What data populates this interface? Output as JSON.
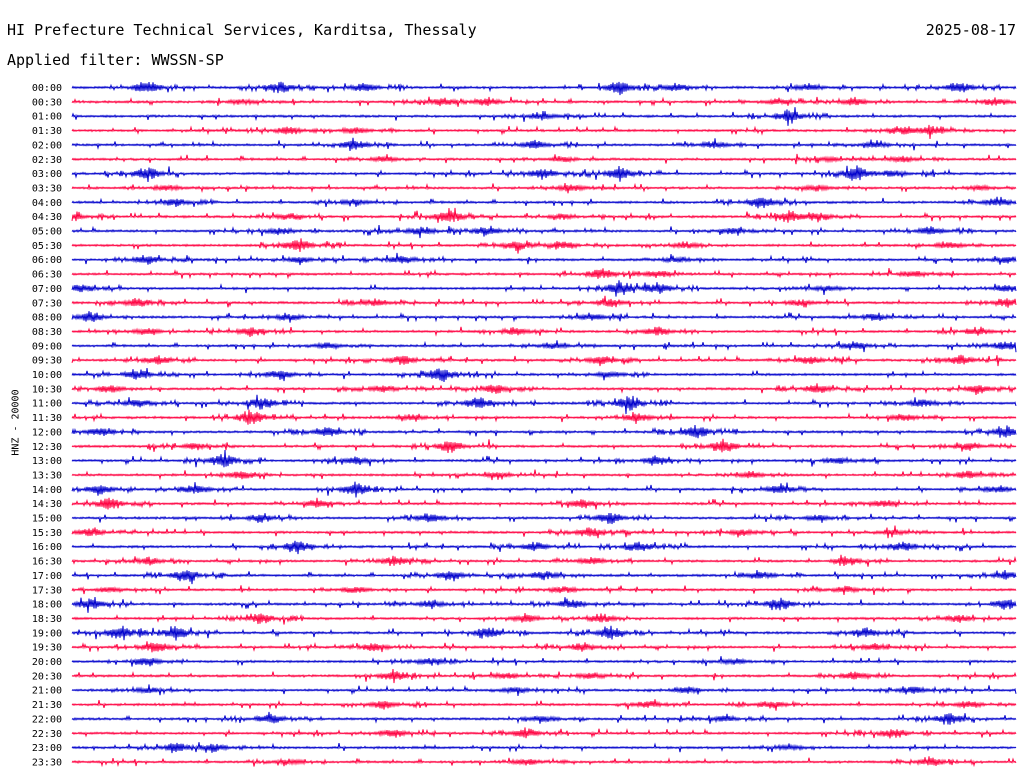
{
  "header": {
    "title": "HI Prefecture Technical Services, Karditsa, Thessaly",
    "date": "2025-08-17",
    "filter": "Applied filter: WWSSN-SP"
  },
  "side_label": "HNZ - 20000",
  "colors": {
    "trace_a": "#0000cc",
    "trace_b": "#ff0040",
    "text": "#000000",
    "background": "#ffffff"
  },
  "chart_data": {
    "type": "line",
    "title": "HI Prefecture Technical Services, Karditsa, Thessaly",
    "subtitle": "Applied filter: WWSSN-SP",
    "ylabel": "HNZ - 20000",
    "date": "2025-08-17",
    "grid": false,
    "legend": "none",
    "series": [
      {
        "label": "00:00",
        "color": "#0000cc",
        "events": [
          [
            0.08,
            0.8
          ],
          [
            0.22,
            0.9
          ],
          [
            0.31,
            0.6
          ],
          [
            0.58,
            0.9
          ],
          [
            0.64,
            0.5
          ],
          [
            0.78,
            0.4
          ],
          [
            0.94,
            0.7
          ]
        ]
      },
      {
        "label": "00:30",
        "color": "#ff0040",
        "events": [
          [
            0.18,
            0.3
          ],
          [
            0.39,
            0.5
          ],
          [
            0.44,
            0.5
          ],
          [
            0.75,
            0.4
          ],
          [
            0.83,
            0.5
          ],
          [
            0.98,
            0.5
          ]
        ]
      },
      {
        "label": "01:00",
        "color": "#0000cc",
        "events": [
          [
            0.5,
            0.4
          ],
          [
            0.76,
            0.9
          ]
        ]
      },
      {
        "label": "01:30",
        "color": "#ff0040",
        "events": [
          [
            0.23,
            0.5
          ],
          [
            0.3,
            0.4
          ],
          [
            0.88,
            0.5
          ],
          [
            0.91,
            0.6
          ]
        ]
      },
      {
        "label": "02:00",
        "color": "#0000cc",
        "events": [
          [
            0.3,
            0.6
          ],
          [
            0.49,
            0.6
          ],
          [
            0.68,
            0.4
          ],
          [
            0.85,
            0.4
          ]
        ]
      },
      {
        "label": "02:30",
        "color": "#ff0040",
        "events": [
          [
            0.33,
            0.4
          ],
          [
            0.52,
            0.3
          ],
          [
            0.8,
            0.3
          ],
          [
            0.88,
            0.4
          ]
        ]
      },
      {
        "label": "03:00",
        "color": "#0000cc",
        "events": [
          [
            0.08,
            0.9
          ],
          [
            0.5,
            0.7
          ],
          [
            0.58,
            0.9
          ],
          [
            0.83,
            1.0
          ],
          [
            0.87,
            0.4
          ]
        ]
      },
      {
        "label": "03:30",
        "color": "#ff0040",
        "events": [
          [
            0.1,
            0.3
          ],
          [
            0.53,
            0.4
          ],
          [
            0.79,
            0.4
          ],
          [
            0.96,
            0.3
          ]
        ]
      },
      {
        "label": "04:00",
        "color": "#0000cc",
        "events": [
          [
            0.11,
            0.5
          ],
          [
            0.3,
            0.4
          ],
          [
            0.73,
            0.8
          ],
          [
            0.98,
            0.5
          ]
        ]
      },
      {
        "label": "04:30",
        "color": "#ff0040",
        "events": [
          [
            0.0,
            0.5
          ],
          [
            0.23,
            0.4
          ],
          [
            0.4,
            1.0
          ],
          [
            0.52,
            0.4
          ],
          [
            0.76,
            0.7
          ],
          [
            0.79,
            0.5
          ]
        ]
      },
      {
        "label": "05:00",
        "color": "#0000cc",
        "events": [
          [
            0.22,
            0.4
          ],
          [
            0.37,
            0.6
          ],
          [
            0.44,
            0.6
          ],
          [
            0.7,
            0.3
          ],
          [
            0.91,
            0.6
          ]
        ]
      },
      {
        "label": "05:30",
        "color": "#ff0040",
        "events": [
          [
            0.24,
            0.9
          ],
          [
            0.47,
            0.6
          ],
          [
            0.52,
            0.5
          ],
          [
            0.65,
            0.4
          ],
          [
            0.93,
            0.4
          ]
        ]
      },
      {
        "label": "06:00",
        "color": "#0000cc",
        "events": [
          [
            0.08,
            0.6
          ],
          [
            0.24,
            0.4
          ],
          [
            0.35,
            0.5
          ],
          [
            0.64,
            0.4
          ],
          [
            0.99,
            0.4
          ]
        ]
      },
      {
        "label": "06:30",
        "color": "#ff0040",
        "events": [
          [
            0.56,
            0.7
          ],
          [
            0.62,
            0.4
          ],
          [
            0.89,
            0.4
          ]
        ]
      },
      {
        "label": "07:00",
        "color": "#0000cc",
        "events": [
          [
            0.01,
            0.5
          ],
          [
            0.58,
            0.8
          ],
          [
            0.62,
            0.8
          ],
          [
            0.8,
            0.4
          ],
          [
            0.99,
            0.5
          ]
        ]
      },
      {
        "label": "07:30",
        "color": "#ff0040",
        "events": [
          [
            0.07,
            0.6
          ],
          [
            0.32,
            0.5
          ],
          [
            0.57,
            0.5
          ],
          [
            0.77,
            0.4
          ],
          [
            0.99,
            0.6
          ]
        ]
      },
      {
        "label": "08:00",
        "color": "#0000cc",
        "events": [
          [
            0.02,
            0.6
          ],
          [
            0.23,
            0.4
          ],
          [
            0.55,
            0.4
          ],
          [
            0.85,
            0.4
          ]
        ]
      },
      {
        "label": "08:30",
        "color": "#ff0040",
        "events": [
          [
            0.08,
            0.5
          ],
          [
            0.19,
            0.6
          ],
          [
            0.47,
            0.5
          ],
          [
            0.62,
            0.6
          ],
          [
            0.96,
            0.5
          ]
        ]
      },
      {
        "label": "09:00",
        "color": "#0000cc",
        "events": [
          [
            0.27,
            0.4
          ],
          [
            0.51,
            0.4
          ],
          [
            0.83,
            0.5
          ],
          [
            0.99,
            0.6
          ]
        ]
      },
      {
        "label": "09:30",
        "color": "#ff0040",
        "events": [
          [
            0.09,
            0.6
          ],
          [
            0.35,
            0.6
          ],
          [
            0.56,
            0.6
          ],
          [
            0.78,
            0.5
          ],
          [
            0.94,
            0.6
          ]
        ]
      },
      {
        "label": "10:00",
        "color": "#0000cc",
        "events": [
          [
            0.07,
            0.6
          ],
          [
            0.22,
            0.6
          ],
          [
            0.39,
            1.0
          ],
          [
            0.57,
            0.4
          ]
        ]
      },
      {
        "label": "10:30",
        "color": "#ff0040",
        "events": [
          [
            0.04,
            0.5
          ],
          [
            0.33,
            0.5
          ],
          [
            0.45,
            0.6
          ],
          [
            0.79,
            0.6
          ],
          [
            0.96,
            0.6
          ]
        ]
      },
      {
        "label": "11:00",
        "color": "#0000cc",
        "events": [
          [
            0.07,
            0.5
          ],
          [
            0.2,
            0.9
          ],
          [
            0.43,
            0.8
          ],
          [
            0.59,
            1.0
          ],
          [
            0.9,
            0.5
          ]
        ]
      },
      {
        "label": "11:30",
        "color": "#ff0040",
        "events": [
          [
            0.19,
            1.0
          ],
          [
            0.36,
            0.4
          ],
          [
            0.6,
            0.5
          ],
          [
            0.88,
            0.5
          ]
        ]
      },
      {
        "label": "12:00",
        "color": "#0000cc",
        "events": [
          [
            0.03,
            0.6
          ],
          [
            0.27,
            0.7
          ],
          [
            0.66,
            0.9
          ],
          [
            0.99,
            0.9
          ]
        ]
      },
      {
        "label": "12:30",
        "color": "#ff0040",
        "events": [
          [
            0.13,
            0.4
          ],
          [
            0.4,
            0.8
          ],
          [
            0.69,
            0.9
          ],
          [
            0.95,
            0.5
          ]
        ]
      },
      {
        "label": "13:00",
        "color": "#0000cc",
        "events": [
          [
            0.16,
            1.0
          ],
          [
            0.3,
            0.5
          ],
          [
            0.62,
            0.6
          ],
          [
            0.81,
            0.4
          ]
        ]
      },
      {
        "label": "13:30",
        "color": "#ff0040",
        "events": [
          [
            0.18,
            0.5
          ],
          [
            0.45,
            0.4
          ],
          [
            0.72,
            0.4
          ],
          [
            0.95,
            0.5
          ]
        ]
      },
      {
        "label": "14:00",
        "color": "#0000cc",
        "events": [
          [
            0.03,
            0.6
          ],
          [
            0.13,
            0.6
          ],
          [
            0.3,
            0.8
          ],
          [
            0.75,
            0.7
          ],
          [
            0.98,
            0.4
          ]
        ]
      },
      {
        "label": "14:30",
        "color": "#ff0040",
        "events": [
          [
            0.04,
            0.8
          ],
          [
            0.26,
            0.5
          ],
          [
            0.54,
            0.6
          ],
          [
            0.86,
            0.5
          ]
        ]
      },
      {
        "label": "15:00",
        "color": "#0000cc",
        "events": [
          [
            0.2,
            0.5
          ],
          [
            0.38,
            0.7
          ],
          [
            0.57,
            0.8
          ],
          [
            0.79,
            0.4
          ]
        ]
      },
      {
        "label": "15:30",
        "color": "#ff0040",
        "events": [
          [
            0.02,
            0.5
          ],
          [
            0.55,
            0.7
          ],
          [
            0.71,
            0.4
          ],
          [
            0.87,
            0.4
          ]
        ]
      },
      {
        "label": "16:00",
        "color": "#0000cc",
        "events": [
          [
            0.24,
            0.8
          ],
          [
            0.49,
            0.6
          ],
          [
            0.6,
            0.7
          ],
          [
            0.88,
            0.6
          ]
        ]
      },
      {
        "label": "16:30",
        "color": "#ff0040",
        "events": [
          [
            0.08,
            0.5
          ],
          [
            0.34,
            0.6
          ],
          [
            0.55,
            0.5
          ],
          [
            0.82,
            0.6
          ]
        ]
      },
      {
        "label": "17:00",
        "color": "#0000cc",
        "events": [
          [
            0.12,
            0.9
          ],
          [
            0.4,
            0.7
          ],
          [
            0.5,
            0.6
          ],
          [
            0.73,
            0.5
          ],
          [
            0.99,
            0.6
          ]
        ]
      },
      {
        "label": "17:30",
        "color": "#ff0040",
        "events": [
          [
            0.04,
            0.3
          ],
          [
            0.3,
            0.4
          ],
          [
            0.52,
            0.4
          ],
          [
            0.82,
            0.4
          ]
        ]
      },
      {
        "label": "18:00",
        "color": "#0000cc",
        "events": [
          [
            0.02,
            0.8
          ],
          [
            0.38,
            0.5
          ],
          [
            0.53,
            0.6
          ],
          [
            0.75,
            0.8
          ],
          [
            0.99,
            0.7
          ]
        ]
      },
      {
        "label": "18:30",
        "color": "#ff0040",
        "events": [
          [
            0.2,
            0.7
          ],
          [
            0.48,
            0.6
          ],
          [
            0.56,
            0.6
          ],
          [
            0.94,
            0.5
          ]
        ]
      },
      {
        "label": "19:00",
        "color": "#0000cc",
        "events": [
          [
            0.05,
            0.8
          ],
          [
            0.11,
            0.9
          ],
          [
            0.44,
            0.7
          ],
          [
            0.57,
            1.0
          ],
          [
            0.84,
            0.6
          ]
        ]
      },
      {
        "label": "19:30",
        "color": "#ff0040",
        "events": [
          [
            0.09,
            0.7
          ],
          [
            0.32,
            0.5
          ],
          [
            0.54,
            0.5
          ],
          [
            0.85,
            0.4
          ]
        ]
      },
      {
        "label": "20:00",
        "color": "#0000cc",
        "events": [
          [
            0.08,
            0.6
          ],
          [
            0.38,
            0.5
          ],
          [
            0.7,
            0.4
          ]
        ]
      },
      {
        "label": "20:30",
        "color": "#ff0040",
        "events": [
          [
            0.34,
            0.6
          ],
          [
            0.46,
            0.4
          ],
          [
            0.55,
            0.4
          ],
          [
            0.83,
            0.6
          ]
        ]
      },
      {
        "label": "21:00",
        "color": "#0000cc",
        "events": [
          [
            0.08,
            0.4
          ],
          [
            0.47,
            0.4
          ],
          [
            0.65,
            0.4
          ],
          [
            0.89,
            0.5
          ]
        ]
      },
      {
        "label": "21:30",
        "color": "#ff0040",
        "events": [
          [
            0.33,
            0.6
          ],
          [
            0.61,
            0.4
          ],
          [
            0.74,
            0.5
          ],
          [
            0.95,
            0.4
          ]
        ]
      },
      {
        "label": "22:00",
        "color": "#0000cc",
        "events": [
          [
            0.21,
            0.7
          ],
          [
            0.5,
            0.4
          ],
          [
            0.69,
            0.4
          ],
          [
            0.93,
            0.8
          ]
        ]
      },
      {
        "label": "22:30",
        "color": "#ff0040",
        "events": [
          [
            0.34,
            0.6
          ],
          [
            0.48,
            0.7
          ],
          [
            0.87,
            0.6
          ]
        ]
      },
      {
        "label": "23:00",
        "color": "#0000cc",
        "events": [
          [
            0.11,
            0.6
          ],
          [
            0.15,
            0.5
          ],
          [
            0.76,
            0.3
          ]
        ]
      },
      {
        "label": "23:30",
        "color": "#ff0040",
        "events": [
          [
            0.23,
            0.4
          ],
          [
            0.48,
            0.4
          ],
          [
            0.91,
            0.5
          ]
        ]
      }
    ]
  }
}
